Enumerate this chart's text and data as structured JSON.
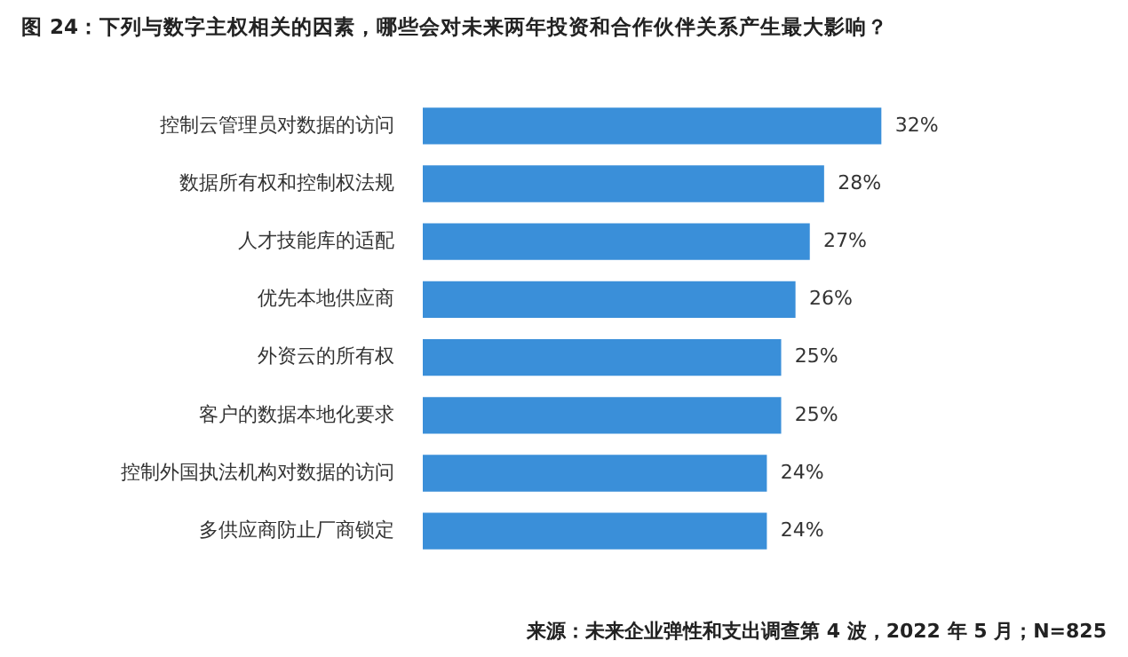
{
  "chart_data": {
    "type": "bar",
    "orientation": "horizontal",
    "title": "图 24：下列与数字主权相关的因素，哪些会对未来两年投资和合作伙伴关系产生最大影响？",
    "categories": [
      "控制云管理员对数据的访问",
      "数据所有权和控制权法规",
      "人才技能库的适配",
      "优先本地供应商",
      "外资云的所有权",
      "客户的数据本地化要求",
      "控制外国执法机构对数据的访问",
      "多供应商防止厂商锁定"
    ],
    "values": [
      32,
      28,
      27,
      26,
      25,
      25,
      24,
      24
    ],
    "value_labels": [
      "32%",
      "28%",
      "27%",
      "26%",
      "25%",
      "25%",
      "24%",
      "24%"
    ],
    "color": "#3a8fd9",
    "legend": false,
    "annotations": [
      "来源：未来企业弹性和支出调查第 4 波，2022 年 5 月；N=825"
    ]
  }
}
